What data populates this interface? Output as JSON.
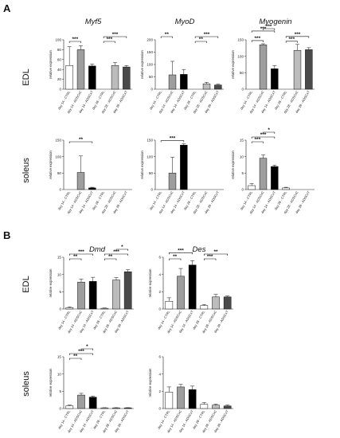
{
  "panels": [
    {
      "letter": "A",
      "columns": [
        "Myf5",
        "MyoD",
        "Myogenin"
      ]
    },
    {
      "letter": "B",
      "columns": [
        "Dmd",
        "Des"
      ]
    }
  ],
  "rows": [
    "EDL",
    "soleus"
  ],
  "ylabel": "relative expression",
  "categories": [
    "day 14 - CTRL",
    "day 14 - ADSCxC",
    "day 14 - ADSCxT",
    "day 28 - CTRL",
    "day 28 - ADSCxC",
    "day 28 - ADSCxT"
  ],
  "colors": {
    "ctrl": "#ffffff",
    "adscxc": "#9e9e9e",
    "adscxt": "#000000",
    "ctrl28": "#ffffff",
    "adscxc28": "#bcbcbc",
    "adscxt28": "#4a4a4a"
  },
  "chart_data": [
    {
      "id": "myf5-edl",
      "type": "bar",
      "gene": "Myf5",
      "tissue": "EDL",
      "ylim": [
        0,
        100
      ],
      "yticks": [
        0,
        20,
        40,
        60,
        80,
        100
      ],
      "values": [
        48,
        80,
        47,
        0,
        48,
        45
      ],
      "errors": [
        38,
        8,
        4,
        0,
        6,
        3
      ],
      "brackets": [
        {
          "from": 0,
          "to": 1,
          "label": "***",
          "level": 0
        },
        {
          "from": 3,
          "to": 5,
          "label": "***",
          "level": 1
        },
        {
          "from": 3,
          "to": 4,
          "label": "***",
          "level": 0
        }
      ]
    },
    {
      "id": "myod-edl",
      "type": "bar",
      "gene": "MyoD",
      "tissue": "EDL",
      "ylim": [
        0,
        200
      ],
      "yticks": [
        0,
        50,
        100,
        150,
        200
      ],
      "values": [
        0,
        58,
        60,
        0,
        22,
        17
      ],
      "errors": [
        0,
        55,
        20,
        0,
        6,
        3
      ],
      "brackets": [
        {
          "from": 0,
          "to": 1,
          "label": "**",
          "level": 1
        },
        {
          "from": 3,
          "to": 5,
          "label": "***",
          "level": 1
        },
        {
          "from": 3,
          "to": 4,
          "label": "**",
          "level": 0
        }
      ]
    },
    {
      "id": "myogenin-edl",
      "type": "bar",
      "gene": "Myogenin",
      "tissue": "EDL",
      "ylim": [
        0,
        150
      ],
      "yticks": [
        0,
        50,
        100,
        150
      ],
      "values": [
        0,
        135,
        62,
        0,
        118,
        120
      ],
      "errors": [
        0,
        3,
        10,
        0,
        18,
        6
      ],
      "brackets": [
        {
          "from": 0,
          "to": 1,
          "label": "***",
          "level": 0
        },
        {
          "from": 1,
          "to": 2,
          "label": "***",
          "level": 3
        },
        {
          "from": 0,
          "to": 2,
          "label": "***",
          "level": 2
        },
        {
          "from": 3,
          "to": 5,
          "label": "***",
          "level": 1
        },
        {
          "from": 3,
          "to": 4,
          "label": "***",
          "level": 0
        }
      ]
    },
    {
      "id": "myf5-soleus",
      "type": "bar",
      "gene": "Myf5",
      "tissue": "soleus",
      "ylim": [
        0,
        150
      ],
      "yticks": [
        0,
        50,
        100,
        150
      ],
      "values": [
        0,
        52,
        5,
        0,
        0,
        0
      ],
      "errors": [
        0,
        50,
        2,
        0,
        0,
        0
      ],
      "brackets": [
        {
          "from": 0,
          "to": 2,
          "label": "**",
          "level": 0
        }
      ]
    },
    {
      "id": "myod-soleus",
      "type": "bar",
      "gene": "MyoD",
      "tissue": "soleus",
      "ylim": [
        0,
        150
      ],
      "yticks": [
        0,
        50,
        100,
        150
      ],
      "values": [
        0,
        50,
        135,
        0,
        0,
        0
      ],
      "errors": [
        0,
        48,
        4,
        0,
        0,
        0
      ],
      "brackets": [
        {
          "from": 0,
          "to": 2,
          "label": "***",
          "level": 0
        }
      ]
    },
    {
      "id": "myogenin-soleus",
      "type": "bar",
      "gene": "Myogenin",
      "tissue": "soleus",
      "ylim": [
        0,
        15
      ],
      "yticks": [
        0,
        5,
        10,
        15
      ],
      "values": [
        1.2,
        9.5,
        7.0,
        0.5,
        0,
        0
      ],
      "errors": [
        0.6,
        1.0,
        0.4,
        0.2,
        0,
        0
      ],
      "brackets": [
        {
          "from": 0,
          "to": 1,
          "label": "***",
          "level": 0
        },
        {
          "from": 0,
          "to": 2,
          "label": "***",
          "level": 1
        },
        {
          "from": 1,
          "to": 2,
          "label": "*",
          "level": 2
        }
      ]
    },
    {
      "id": "dmd-edl",
      "type": "bar",
      "gene": "Dmd",
      "tissue": "EDL",
      "ylim": [
        0,
        15
      ],
      "yticks": [
        0,
        5,
        10,
        15
      ],
      "values": [
        0.4,
        7.8,
        8.0,
        0.2,
        8.4,
        10.8
      ],
      "errors": [
        0.2,
        0.9,
        1.2,
        0.1,
        0.7,
        0.6
      ],
      "brackets": [
        {
          "from": 0,
          "to": 1,
          "label": "**",
          "level": 0
        },
        {
          "from": 0,
          "to": 2,
          "label": "***",
          "level": 1
        },
        {
          "from": 3,
          "to": 4,
          "label": "**",
          "level": 0
        },
        {
          "from": 3,
          "to": 5,
          "label": "***",
          "level": 1
        },
        {
          "from": 4,
          "to": 5,
          "label": "*",
          "level": 2
        }
      ]
    },
    {
      "id": "des-edl",
      "type": "bar",
      "gene": "Des",
      "tissue": "EDL",
      "ylim": [
        0,
        6
      ],
      "yticks": [
        0,
        2,
        4,
        6
      ],
      "values": [
        0.9,
        3.8,
        5.1,
        0.4,
        1.4,
        1.4
      ],
      "errors": [
        0.4,
        0.9,
        0.5,
        0.1,
        0.3,
        0.1
      ],
      "brackets": [
        {
          "from": 0,
          "to": 1,
          "label": "**",
          "level": 0
        },
        {
          "from": 0,
          "to": 2,
          "label": "***",
          "level": 1
        },
        {
          "from": 3,
          "to": 4,
          "label": "***",
          "level": 0
        },
        {
          "from": 3,
          "to": 5,
          "label": "**",
          "level": 1
        }
      ]
    },
    {
      "id": "dmd-soleus",
      "type": "bar",
      "gene": "Dmd",
      "tissue": "soleus",
      "ylim": [
        0,
        15
      ],
      "yticks": [
        0,
        5,
        10,
        15
      ],
      "values": [
        0.8,
        3.9,
        3.3,
        0.2,
        0.2,
        0.2
      ],
      "errors": [
        0.2,
        0.5,
        0.3,
        0.05,
        0.05,
        0.05
      ],
      "brackets": [
        {
          "from": 0,
          "to": 1,
          "label": "**",
          "level": 0
        },
        {
          "from": 0,
          "to": 2,
          "label": "***",
          "level": 1
        },
        {
          "from": 1,
          "to": 2,
          "label": "*",
          "level": 2
        }
      ]
    },
    {
      "id": "des-soleus",
      "type": "bar",
      "gene": "Des",
      "tissue": "soleus",
      "ylim": [
        0,
        6
      ],
      "yticks": [
        0,
        2,
        4,
        6
      ],
      "values": [
        1.9,
        2.5,
        2.2,
        0.5,
        0.4,
        0.3
      ],
      "errors": [
        0.6,
        0.3,
        0.4,
        0.2,
        0.1,
        0.1
      ],
      "brackets": []
    }
  ]
}
